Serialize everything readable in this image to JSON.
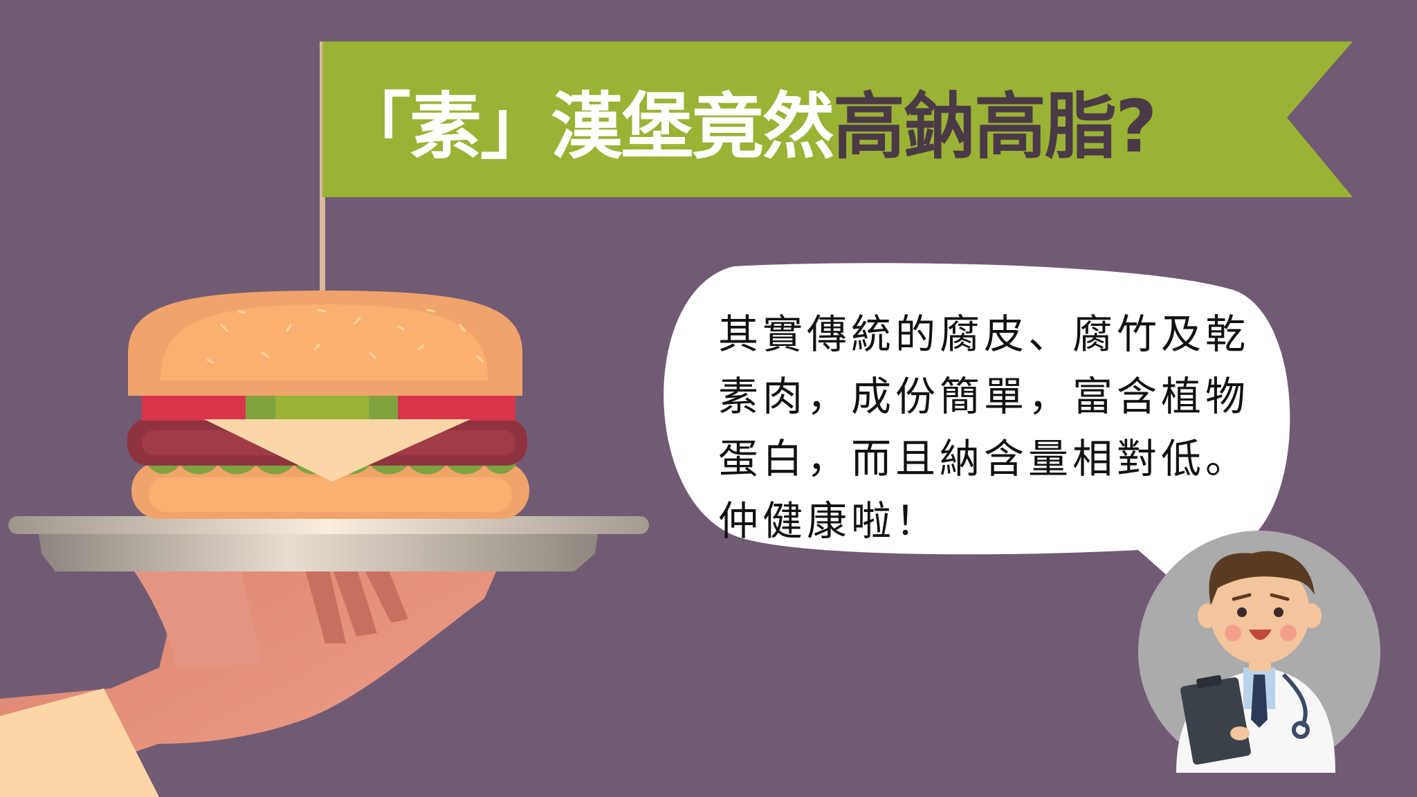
{
  "banner": {
    "title_part1": "「素」漢堡竟然",
    "title_part2": "高鈉高脂?"
  },
  "speech_bubble": {
    "lines": [
      "其實傳統的腐皮、腐竹及乾",
      "素肉，成份簡單，富含植物",
      "蛋白，而且納含量相對低。",
      "仲健康啦！"
    ]
  },
  "colors": {
    "background": "#715a73",
    "banner": "#9ab334",
    "title_dark": "#4a3946",
    "title_light": "#ffffff"
  },
  "icons": [
    "burger-icon",
    "plate-icon",
    "hand-icon",
    "doctor-icon",
    "flag-pole-icon"
  ]
}
